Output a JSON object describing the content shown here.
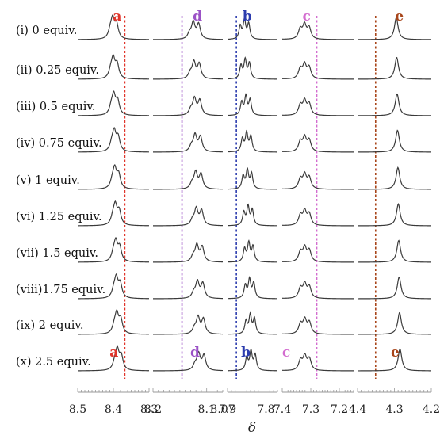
{
  "chart_data": {
    "type": "line",
    "title": "",
    "xlabel": "δ",
    "ylabel": "",
    "grid": false,
    "rows": [
      {
        "label": "(i) 0 equiv."
      },
      {
        "label": "(ii) 0.25 equiv."
      },
      {
        "label": "(iii) 0.5 equiv."
      },
      {
        "label": "(iv) 0.75 equiv."
      },
      {
        "label": "(v) 1 equiv."
      },
      {
        "label": "(vi) 1.25 equiv."
      },
      {
        "label": "(vii) 1.5 equiv."
      },
      {
        "label": "(viii)1.75 equiv."
      },
      {
        "label": "(ix) 2 equiv."
      },
      {
        "label": "(x) 2.5 equiv."
      }
    ],
    "panels": [
      {
        "xlim": [
          8.5,
          8.3
        ],
        "ticks": [
          "8.5",
          "8.4",
          "8.3"
        ],
        "signal": "a",
        "color": "#e0342a",
        "ref_line": 8.368,
        "peak_start": 8.398,
        "peak_end": 8.385,
        "height": 0.8,
        "shape": [
          [
            -0.007,
            0.72
          ],
          [
            0.004,
            0.98
          ],
          [
            0.011,
            0.35
          ]
        ]
      },
      {
        "xlim": [
          8.2,
          8.07
        ],
        "ticks": [
          "8.2",
          "8.1",
          "8.07"
        ],
        "signal": "d",
        "color": "#9b52c6",
        "ref_line": 8.146,
        "peak_start": 8.123,
        "peak_end": 8.113,
        "height": 0.72,
        "shape": [
          [
            -0.008,
            0.86
          ],
          [
            0.002,
            0.95
          ],
          [
            0.009,
            0.3
          ]
        ]
      },
      {
        "xlim": [
          7.9,
          7.77
        ],
        "ticks": [
          "7.9",
          "7.8"
        ],
        "signal": "b",
        "color": "#2c3cae",
        "ref_line": 7.877,
        "peak_start": 7.857,
        "peak_end": 7.84,
        "height": 0.82,
        "shape": [
          [
            -0.012,
            0.78
          ],
          [
            -0.001,
            0.95
          ],
          [
            0.01,
            0.66
          ]
        ]
      },
      {
        "xlim": [
          7.4,
          7.15
        ],
        "ticks": [
          "7.4",
          "7.3",
          "7.2"
        ],
        "signal": "c",
        "color": "#d36ccf",
        "ref_line": 7.279,
        "peak_start": 7.326,
        "peak_end": 7.325,
        "height": 0.6,
        "shape": [
          [
            -0.02,
            0.78
          ],
          [
            -0.004,
            0.96
          ],
          [
            0.011,
            0.68
          ],
          [
            0.096,
            0.16
          ]
        ]
      },
      {
        "xlim": [
          4.4,
          4.2
        ],
        "ticks": [
          "4.4",
          "4.3",
          "4.2"
        ],
        "signal": "e",
        "color": "#a8451a",
        "ref_line": 4.351,
        "peak_start": 4.295,
        "peak_end": 4.285,
        "height": 0.92,
        "shape": [
          [
            0.0,
            1.0
          ]
        ]
      }
    ]
  }
}
